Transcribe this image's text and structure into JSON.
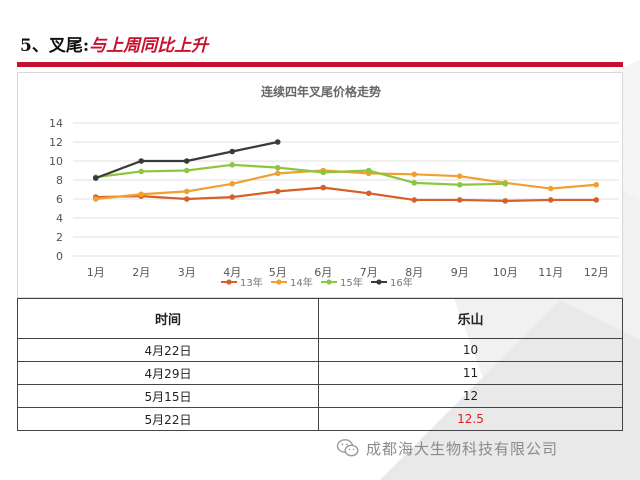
{
  "headline": {
    "lead": "5、叉尾:",
    "emphasis": "与上周同比上升"
  },
  "colors": {
    "accent_red": "#c8102e",
    "highlight_red": "#e0201a"
  },
  "chart_data": {
    "type": "line",
    "title": "连续四年叉尾价格走势",
    "categories": [
      "1月",
      "2月",
      "3月",
      "4月",
      "5月",
      "6月",
      "7月",
      "8月",
      "9月",
      "10月",
      "11月",
      "12月"
    ],
    "ylim": [
      0,
      14
    ],
    "yticks": [
      "0",
      "2",
      "4",
      "6",
      "8",
      "10",
      "12",
      "14"
    ],
    "grid": true,
    "legend_position": "bottom",
    "series": [
      {
        "name": "13年",
        "color": "#d65f2a",
        "values": [
          6.2,
          6.3,
          6.0,
          6.2,
          6.8,
          7.2,
          6.6,
          5.9,
          5.9,
          5.8,
          5.9,
          5.9
        ]
      },
      {
        "name": "14年",
        "color": "#f0a030",
        "values": [
          6.0,
          6.5,
          6.8,
          7.6,
          8.7,
          9.0,
          8.7,
          8.6,
          8.4,
          7.7,
          7.1,
          7.5
        ]
      },
      {
        "name": "15年",
        "color": "#8cc63f",
        "values": [
          8.3,
          8.9,
          9.0,
          9.6,
          9.3,
          8.8,
          9.0,
          7.7,
          7.5,
          7.6,
          null,
          null
        ]
      },
      {
        "name": "16年",
        "color": "#3a3a3a",
        "values": [
          8.2,
          10.0,
          10.0,
          11.0,
          12.0,
          null,
          null,
          null,
          null,
          null,
          null,
          null
        ]
      }
    ]
  },
  "table": {
    "headers": [
      "时间",
      "乐山"
    ],
    "rows": [
      {
        "date": "4月22日",
        "value": "10"
      },
      {
        "date": "4月29日",
        "value": "11"
      },
      {
        "date": "5月15日",
        "value": "12"
      },
      {
        "date": "5月22日",
        "value": "12.5"
      }
    ]
  },
  "watermark": {
    "icon": "wechat-icon",
    "text": "成都海大生物科技有限公司"
  }
}
